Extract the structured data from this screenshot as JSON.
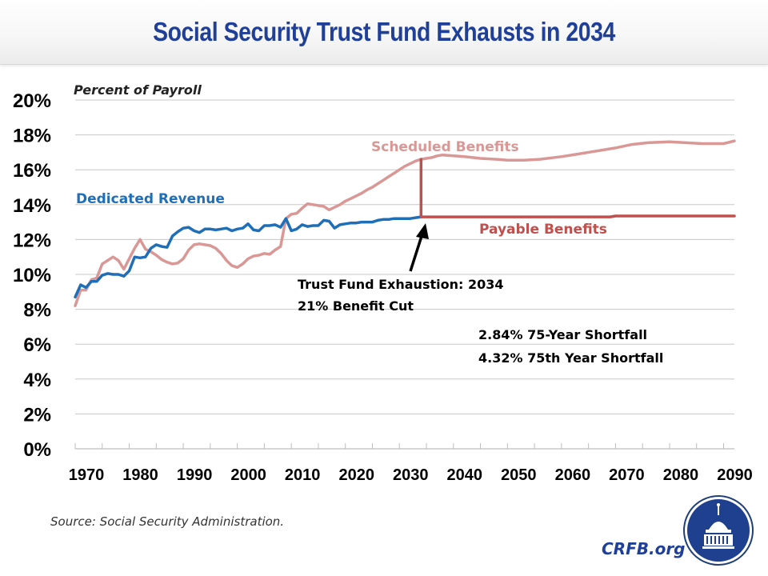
{
  "header": {
    "title": "Social Security Trust Fund Exhausts in 2034"
  },
  "colors": {
    "title": "#1f3f99",
    "dedicated_revenue": "#1f6fb8",
    "scheduled_benefits": "#d99795",
    "payable_benefits": "#c0504d",
    "grid": "#c8c8c8"
  },
  "annotations": {
    "exhaustion_line1": "Trust Fund Exhaustion: 2034",
    "exhaustion_line2": "21% Benefit Cut",
    "shortfall_line1": "2.84% 75-Year Shortfall",
    "shortfall_line2": "4.32% 75th Year Shortfall"
  },
  "footer": {
    "source": "Source: Social Security Administration.",
    "brand": "CRFB.org",
    "logo_icon": "capitol-dome-icon"
  },
  "chart_data": {
    "type": "line",
    "title": "Social Security Trust Fund Exhausts in 2034",
    "xlabel": "",
    "ylabel": "Percent of Payroll",
    "xlim": [
      1970,
      2092
    ],
    "ylim": [
      0,
      20
    ],
    "grid": true,
    "x_ticks": [
      "1970",
      "1980",
      "1990",
      "2000",
      "2010",
      "2020",
      "2030",
      "2040",
      "2050",
      "2060",
      "2070",
      "2080",
      "2090"
    ],
    "y_ticks": [
      "0%",
      "2%",
      "4%",
      "6%",
      "8%",
      "10%",
      "12%",
      "14%",
      "16%",
      "18%",
      "20%"
    ],
    "series": [
      {
        "name": "Dedicated  Revenue",
        "label": "Dedicated  Revenue",
        "x": [
          1970,
          1971,
          1972,
          1973,
          1974,
          1975,
          1976,
          1977,
          1978,
          1979,
          1980,
          1981,
          1982,
          1983,
          1984,
          1985,
          1986,
          1987,
          1988,
          1989,
          1990,
          1991,
          1992,
          1993,
          1994,
          1995,
          1996,
          1997,
          1998,
          1999,
          2000,
          2001,
          2002,
          2003,
          2004,
          2005,
          2006,
          2007,
          2008,
          2009,
          2010,
          2011,
          2012,
          2013,
          2014,
          2015,
          2016,
          2017,
          2018,
          2019,
          2020,
          2021,
          2022,
          2023,
          2024,
          2025,
          2026,
          2027,
          2028,
          2029,
          2030,
          2031,
          2032,
          2033,
          2034
        ],
        "values": [
          8.7,
          9.4,
          9.25,
          9.6,
          9.6,
          9.95,
          10.05,
          10.0,
          10.0,
          9.9,
          10.2,
          11.0,
          10.95,
          11.0,
          11.5,
          11.7,
          11.6,
          11.55,
          12.2,
          12.45,
          12.65,
          12.7,
          12.5,
          12.4,
          12.6,
          12.6,
          12.55,
          12.6,
          12.65,
          12.5,
          12.6,
          12.65,
          12.9,
          12.55,
          12.5,
          12.8,
          12.8,
          12.85,
          12.7,
          13.2,
          12.5,
          12.6,
          12.85,
          12.75,
          12.8,
          12.8,
          13.1,
          13.05,
          12.65,
          12.85,
          12.9,
          12.95,
          12.95,
          13.0,
          13.0,
          13.0,
          13.1,
          13.15,
          13.15,
          13.2,
          13.2,
          13.2,
          13.2,
          13.25,
          13.3
        ]
      },
      {
        "name": "Scheduled Benefits",
        "label": "Scheduled Benefits",
        "x": [
          1970,
          1971,
          1972,
          1973,
          1974,
          1975,
          1976,
          1977,
          1978,
          1979,
          1980,
          1981,
          1982,
          1983,
          1984,
          1985,
          1986,
          1987,
          1988,
          1989,
          1990,
          1991,
          1992,
          1993,
          1994,
          1995,
          1996,
          1997,
          1998,
          1999,
          2000,
          2001,
          2002,
          2003,
          2004,
          2005,
          2006,
          2007,
          2008,
          2009,
          2010,
          2011,
          2012,
          2013,
          2014,
          2015,
          2016,
          2017,
          2018,
          2019,
          2020,
          2021,
          2022,
          2023,
          2024,
          2025,
          2026,
          2027,
          2028,
          2029,
          2030,
          2031,
          2032,
          2033,
          2034,
          2035,
          2036,
          2037,
          2038,
          2040,
          2042,
          2045,
          2048,
          2050,
          2053,
          2056,
          2060,
          2063,
          2066,
          2070,
          2073,
          2076,
          2080,
          2083,
          2086,
          2090,
          2092
        ],
        "values": [
          8.2,
          9.1,
          9.1,
          9.7,
          9.8,
          10.6,
          10.8,
          11.0,
          10.8,
          10.3,
          10.9,
          11.5,
          12.0,
          11.45,
          11.3,
          11.1,
          10.85,
          10.7,
          10.6,
          10.65,
          10.9,
          11.4,
          11.7,
          11.75,
          11.7,
          11.65,
          11.5,
          11.2,
          10.8,
          10.5,
          10.4,
          10.6,
          10.9,
          11.05,
          11.1,
          11.2,
          11.15,
          11.4,
          11.6,
          13.2,
          13.45,
          13.5,
          13.8,
          14.05,
          14.0,
          13.95,
          13.9,
          13.7,
          13.85,
          14.0,
          14.2,
          14.35,
          14.5,
          14.65,
          14.85,
          15.0,
          15.2,
          15.4,
          15.6,
          15.8,
          16.0,
          16.2,
          16.35,
          16.5,
          16.6,
          16.65,
          16.7,
          16.8,
          16.85,
          16.8,
          16.75,
          16.65,
          16.6,
          16.55,
          16.55,
          16.6,
          16.75,
          16.9,
          17.05,
          17.25,
          17.45,
          17.55,
          17.6,
          17.55,
          17.5,
          17.5,
          17.65
        ]
      },
      {
        "name": "Payable Benefits",
        "label": "Payable Benefits",
        "x": [
          2034,
          2034,
          2069,
          2070,
          2092
        ],
        "values": [
          16.6,
          13.3,
          13.3,
          13.35,
          13.35
        ]
      }
    ],
    "annotations": [
      {
        "text": "Trust Fund Exhaustion: 2034",
        "points_to": [
          2034,
          13.3
        ]
      },
      {
        "text": "21% Benefit Cut"
      },
      {
        "text": "2.84% 75-Year Shortfall"
      },
      {
        "text": "4.32% 75th Year Shortfall"
      }
    ]
  }
}
